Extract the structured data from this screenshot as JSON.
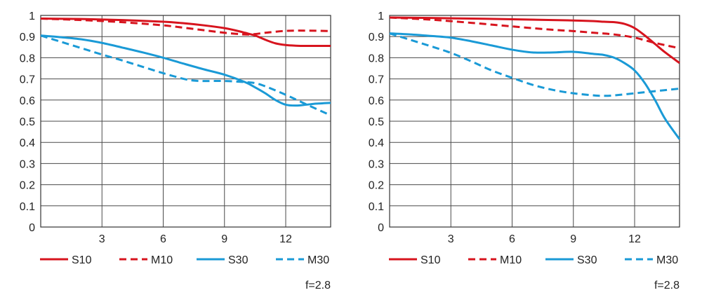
{
  "chart_data": [
    {
      "type": "line",
      "title": "",
      "xlabel": "",
      "ylabel": "",
      "xlim": [
        0,
        14.2
      ],
      "ylim": [
        0,
        1
      ],
      "x_ticks": [
        3,
        6,
        9,
        12
      ],
      "x_tick_labels": [
        "3",
        "6",
        "9",
        "12"
      ],
      "y_ticks": [
        0,
        0.1,
        0.2,
        0.3,
        0.4,
        0.5,
        0.6,
        0.7,
        0.8,
        0.9,
        1
      ],
      "y_tick_labels": [
        "0",
        "0.1",
        "0.2",
        "0.3",
        "0.4",
        "0.5",
        "0.6",
        "0.7",
        "0.8",
        "0.9",
        "1"
      ],
      "grid": true,
      "legend_position": "bottom",
      "annotation": "f=2.8",
      "series": [
        {
          "name": "S10",
          "color": "#d7141e",
          "dash": false,
          "x": [
            0,
            2,
            4,
            6,
            7,
            8,
            9,
            9.5,
            10,
            10.5,
            11,
            11.5,
            12,
            12.5,
            13,
            14.2
          ],
          "y": [
            0.985,
            0.983,
            0.978,
            0.97,
            0.963,
            0.953,
            0.94,
            0.93,
            0.918,
            0.905,
            0.885,
            0.868,
            0.86,
            0.857,
            0.856,
            0.856
          ]
        },
        {
          "name": "M10",
          "color": "#d7141e",
          "dash": true,
          "x": [
            0,
            2,
            4,
            6,
            7,
            8,
            9,
            10,
            10.5,
            11,
            12,
            13,
            14.2
          ],
          "y": [
            0.985,
            0.978,
            0.968,
            0.953,
            0.942,
            0.93,
            0.918,
            0.91,
            0.912,
            0.918,
            0.927,
            0.928,
            0.926
          ]
        },
        {
          "name": "S30",
          "color": "#1a9ad6",
          "dash": false,
          "x": [
            0,
            1,
            2,
            3,
            4,
            5,
            6,
            7,
            8,
            9,
            10,
            10.5,
            11,
            11.5,
            12,
            12.5,
            13,
            13.5,
            14.2
          ],
          "y": [
            0.905,
            0.897,
            0.887,
            0.87,
            0.848,
            0.825,
            0.8,
            0.772,
            0.745,
            0.72,
            0.685,
            0.66,
            0.632,
            0.6,
            0.578,
            0.574,
            0.578,
            0.583,
            0.587
          ]
        },
        {
          "name": "M30",
          "color": "#1a9ad6",
          "dash": true,
          "x": [
            0,
            1,
            2,
            3,
            4,
            5,
            6,
            7,
            7.5,
            8,
            9,
            10,
            10.5,
            11,
            12,
            13,
            14.2
          ],
          "y": [
            0.905,
            0.875,
            0.845,
            0.815,
            0.787,
            0.757,
            0.727,
            0.7,
            0.692,
            0.69,
            0.69,
            0.685,
            0.68,
            0.665,
            0.625,
            0.58,
            0.528
          ]
        }
      ]
    },
    {
      "type": "line",
      "title": "",
      "xlabel": "",
      "ylabel": "",
      "xlim": [
        0,
        14.2
      ],
      "ylim": [
        0,
        1
      ],
      "x_ticks": [
        3,
        6,
        9,
        12
      ],
      "x_tick_labels": [
        "3",
        "6",
        "9",
        "12"
      ],
      "y_ticks": [
        0,
        0.1,
        0.2,
        0.3,
        0.4,
        0.5,
        0.6,
        0.7,
        0.8,
        0.9,
        1
      ],
      "y_tick_labels": [
        "0",
        "0.1",
        "0.2",
        "0.3",
        "0.4",
        "0.5",
        "0.6",
        "0.7",
        "0.8",
        "0.9",
        "1"
      ],
      "grid": true,
      "legend_position": "bottom",
      "annotation": "f=2.8",
      "series": [
        {
          "name": "S10",
          "color": "#d7141e",
          "dash": false,
          "x": [
            0,
            2,
            4,
            6,
            8,
            9,
            10,
            10.5,
            11,
            11.5,
            12,
            12.5,
            13,
            13.5,
            14.2
          ],
          "y": [
            0.99,
            0.988,
            0.985,
            0.982,
            0.978,
            0.976,
            0.973,
            0.97,
            0.968,
            0.96,
            0.94,
            0.905,
            0.865,
            0.825,
            0.775
          ]
        },
        {
          "name": "M10",
          "color": "#d7141e",
          "dash": true,
          "x": [
            0,
            2,
            4,
            6,
            8,
            9,
            10,
            11,
            12,
            13,
            14.2
          ],
          "y": [
            0.99,
            0.98,
            0.965,
            0.948,
            0.932,
            0.926,
            0.918,
            0.91,
            0.895,
            0.87,
            0.845
          ]
        },
        {
          "name": "S30",
          "color": "#1a9ad6",
          "dash": false,
          "x": [
            0,
            1,
            2,
            3,
            4,
            5,
            6,
            7,
            8,
            9,
            10,
            10.5,
            11,
            11.5,
            12,
            12.5,
            13,
            13.5,
            14.2
          ],
          "y": [
            0.915,
            0.91,
            0.903,
            0.895,
            0.878,
            0.858,
            0.838,
            0.825,
            0.825,
            0.828,
            0.818,
            0.813,
            0.8,
            0.775,
            0.74,
            0.68,
            0.6,
            0.51,
            0.415
          ]
        },
        {
          "name": "M30",
          "color": "#1a9ad6",
          "dash": true,
          "x": [
            0,
            1,
            2,
            3,
            4,
            5,
            6,
            7,
            8,
            9,
            10,
            10.5,
            11,
            12,
            13,
            14.2
          ],
          "y": [
            0.915,
            0.885,
            0.855,
            0.823,
            0.783,
            0.74,
            0.705,
            0.672,
            0.648,
            0.632,
            0.622,
            0.62,
            0.622,
            0.632,
            0.642,
            0.654
          ]
        }
      ]
    }
  ]
}
